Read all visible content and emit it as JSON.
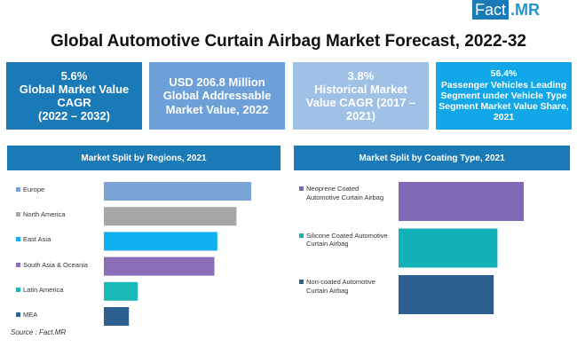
{
  "brand": {
    "part1": "Fact",
    "part2": ".MR"
  },
  "title": "Global Automotive Curtain Airbag Market Forecast, 2022-32",
  "cards": [
    {
      "lines": [
        "5.6%",
        "Global Market Value",
        "CAGR",
        "(2022 – 2032)"
      ],
      "color": "#1a7ab8"
    },
    {
      "lines": [
        "USD 206.8 Million",
        "Global Addressable",
        "Market Value, 2022"
      ],
      "color": "#6d9fd8"
    },
    {
      "lines": [
        "3.8%",
        "Historical Market",
        "Value CAGR (2017 –",
        "2021)"
      ],
      "color": "#9fc1e6"
    },
    {
      "lines": [
        "56.4%",
        "Passenger Vehicles Leading",
        "Segment under Vehicle Type",
        "Segment Market Value Share,",
        "2021"
      ],
      "color": "#12a8e8"
    }
  ],
  "source": "Source : Fact.MR",
  "chart_data": [
    {
      "type": "bar",
      "orientation": "horizontal",
      "title": "Market Split by Regions, 2021",
      "categories": [
        "Europe",
        "North America",
        "East Asia",
        "South Asia & Oceania",
        "Latin America",
        "MEA"
      ],
      "values_relative": [
        100,
        90,
        77,
        75,
        23,
        17
      ],
      "values_note": "Relative bar lengths measured in pixels and normalised to Europe = 100; no values are printed on the chart.",
      "colors": [
        "#7aa3d6",
        "#a6a6a6",
        "#0fb0ef",
        "#8a6fb8",
        "#1bbab8",
        "#2c5e8f"
      ],
      "legend": "left",
      "grid": false
    },
    {
      "type": "bar",
      "orientation": "horizontal",
      "title": "Market Split by Coating Type, 2021",
      "categories": [
        "Neoprene Coated Automotive Curtain Airbag",
        "Silicone Coated Automotive Curtain Airbag",
        "Non-coated Automotive Curtain Airbag"
      ],
      "values_relative": [
        100,
        79,
        76
      ],
      "values_note": "Relative bar lengths measured in pixels and normalised to Neoprene Coated = 100; no values are printed on the chart.",
      "colors": [
        "#8068b6",
        "#12b2b8",
        "#2c5e8f"
      ],
      "legend": "left",
      "grid": false
    }
  ]
}
